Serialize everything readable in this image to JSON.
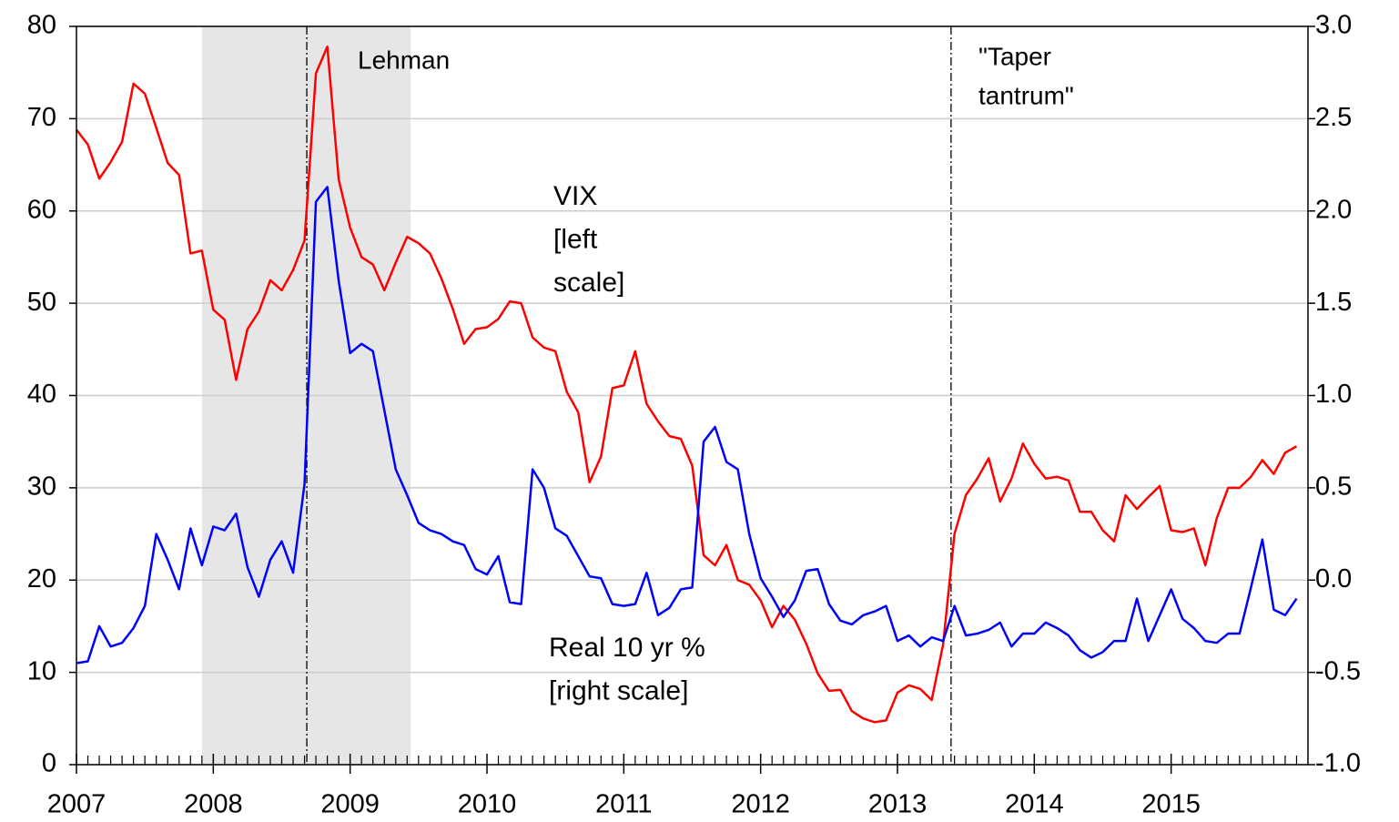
{
  "chart_data": {
    "type": "line",
    "categories": [
      "2007",
      null,
      null,
      null,
      null,
      null,
      null,
      null,
      null,
      null,
      null,
      null,
      "2008",
      null,
      null,
      null,
      null,
      null,
      null,
      null,
      null,
      null,
      null,
      null,
      "2009",
      null,
      null,
      null,
      null,
      null,
      null,
      null,
      null,
      null,
      null,
      null,
      "2010",
      null,
      null,
      null,
      null,
      null,
      null,
      null,
      null,
      null,
      null,
      null,
      "2011",
      null,
      null,
      null,
      null,
      null,
      null,
      null,
      null,
      null,
      null,
      null,
      "2012",
      null,
      null,
      null,
      null,
      null,
      null,
      null,
      null,
      null,
      null,
      null,
      "2013",
      null,
      null,
      null,
      null,
      null,
      null,
      null,
      null,
      null,
      null,
      null,
      "2014",
      null,
      null,
      null,
      null,
      null,
      null,
      null,
      null,
      null,
      null,
      null,
      "2015",
      null,
      null,
      null,
      null,
      null,
      null,
      null,
      null,
      null,
      null,
      null
    ],
    "ylim": [
      0,
      80
    ],
    "yticks": [
      0,
      10,
      20,
      30,
      40,
      50,
      60,
      70,
      80
    ],
    "y2lim": [
      -1,
      3
    ],
    "y2ticks": [
      {
        "value": -1,
        "label": "-1.0"
      },
      {
        "value": -0.5,
        "label": "-0.5"
      },
      {
        "value": 0,
        "label": "0.0"
      },
      {
        "value": 0.5,
        "label": "0.5"
      },
      {
        "value": 1,
        "label": "1.0"
      },
      {
        "value": 1.5,
        "label": "1.5"
      },
      {
        "value": 2,
        "label": "2.0"
      },
      {
        "value": 2.5,
        "label": "2.5"
      },
      {
        "value": 3,
        "label": "3.0"
      }
    ],
    "grid": true,
    "shaded_region": {
      "from": 11,
      "to": 29.3,
      "color": "#e6e6e6"
    },
    "events": [
      {
        "at": 20.2,
        "label": [
          "Lehman"
        ]
      },
      {
        "at": 76.7,
        "label": [
          "\"Taper",
          "tantrum\""
        ]
      }
    ],
    "series": [
      {
        "name": [
          "VIX",
          "[left",
          "scale]"
        ],
        "color": "#ff0000",
        "axis": "y",
        "values": [
          68.8,
          67.2,
          63.5,
          65.3,
          67.5,
          73.8,
          72.7,
          69.0,
          65.2,
          63.9,
          55.4,
          55.7,
          49.3,
          48.2,
          41.7,
          47.2,
          49.1,
          52.5,
          51.4,
          53.6,
          56.8,
          74.9,
          77.8,
          63.4,
          58.2,
          55.0,
          54.2,
          51.4,
          54.4,
          57.2,
          56.5,
          55.4,
          52.7,
          49.4,
          45.6,
          47.2,
          47.4,
          48.3,
          50.2,
          50.0,
          46.3,
          45.2,
          44.8,
          40.4,
          38.2,
          30.6,
          33.4,
          40.8,
          41.1,
          44.8,
          39.1,
          37.2,
          35.6,
          35.3,
          32.4,
          22.7,
          21.6,
          23.8,
          20.0,
          19.5,
          17.8,
          14.9,
          17.2,
          15.7,
          13.1,
          9.9,
          8.0,
          8.1,
          5.8,
          5.0,
          4.6,
          4.8,
          7.8,
          8.6,
          8.2,
          7.0,
          13.0,
          25.0,
          29.2,
          31.0,
          33.2,
          28.5,
          31.0,
          34.8,
          32.6,
          31.0,
          31.2,
          30.8,
          27.4,
          27.4,
          25.4,
          24.2,
          29.2,
          27.7,
          29.0,
          30.2,
          25.4,
          25.2,
          25.6,
          21.6,
          26.7,
          30.0,
          30.0,
          31.2,
          33.0,
          31.5,
          33.8,
          34.5
        ]
      },
      {
        "name": [
          "Real 10 yr %",
          "[right scale]"
        ],
        "color": "#0000ff",
        "axis": "y2",
        "values": [
          -0.45,
          -0.44,
          -0.25,
          -0.36,
          -0.34,
          -0.26,
          -0.14,
          0.25,
          0.11,
          -0.05,
          0.28,
          0.08,
          0.29,
          0.27,
          0.36,
          0.07,
          -0.09,
          0.11,
          0.21,
          0.04,
          0.52,
          2.05,
          2.13,
          1.62,
          1.23,
          1.28,
          1.24,
          0.92,
          0.6,
          0.46,
          0.31,
          0.27,
          0.25,
          0.21,
          0.19,
          0.06,
          0.03,
          0.13,
          -0.12,
          -0.13,
          0.6,
          0.5,
          0.28,
          0.24,
          0.13,
          0.02,
          0.01,
          -0.13,
          -0.14,
          -0.13,
          0.04,
          -0.19,
          -0.15,
          -0.05,
          -0.04,
          0.75,
          0.83,
          0.64,
          0.6,
          0.25,
          0.01,
          -0.09,
          -0.2,
          -0.11,
          0.05,
          0.06,
          -0.13,
          -0.22,
          -0.24,
          -0.19,
          -0.17,
          -0.14,
          -0.33,
          -0.3,
          -0.36,
          -0.31,
          -0.33,
          -0.14,
          -0.3,
          -0.29,
          -0.27,
          -0.23,
          -0.36,
          -0.29,
          -0.29,
          -0.23,
          -0.26,
          -0.3,
          -0.38,
          -0.42,
          -0.39,
          -0.33,
          -0.33,
          -0.1,
          -0.33,
          -0.19,
          -0.05,
          -0.21,
          -0.26,
          -0.33,
          -0.34,
          -0.29,
          -0.29,
          -0.04,
          0.22,
          -0.16,
          -0.19,
          -0.1
        ]
      }
    ]
  }
}
